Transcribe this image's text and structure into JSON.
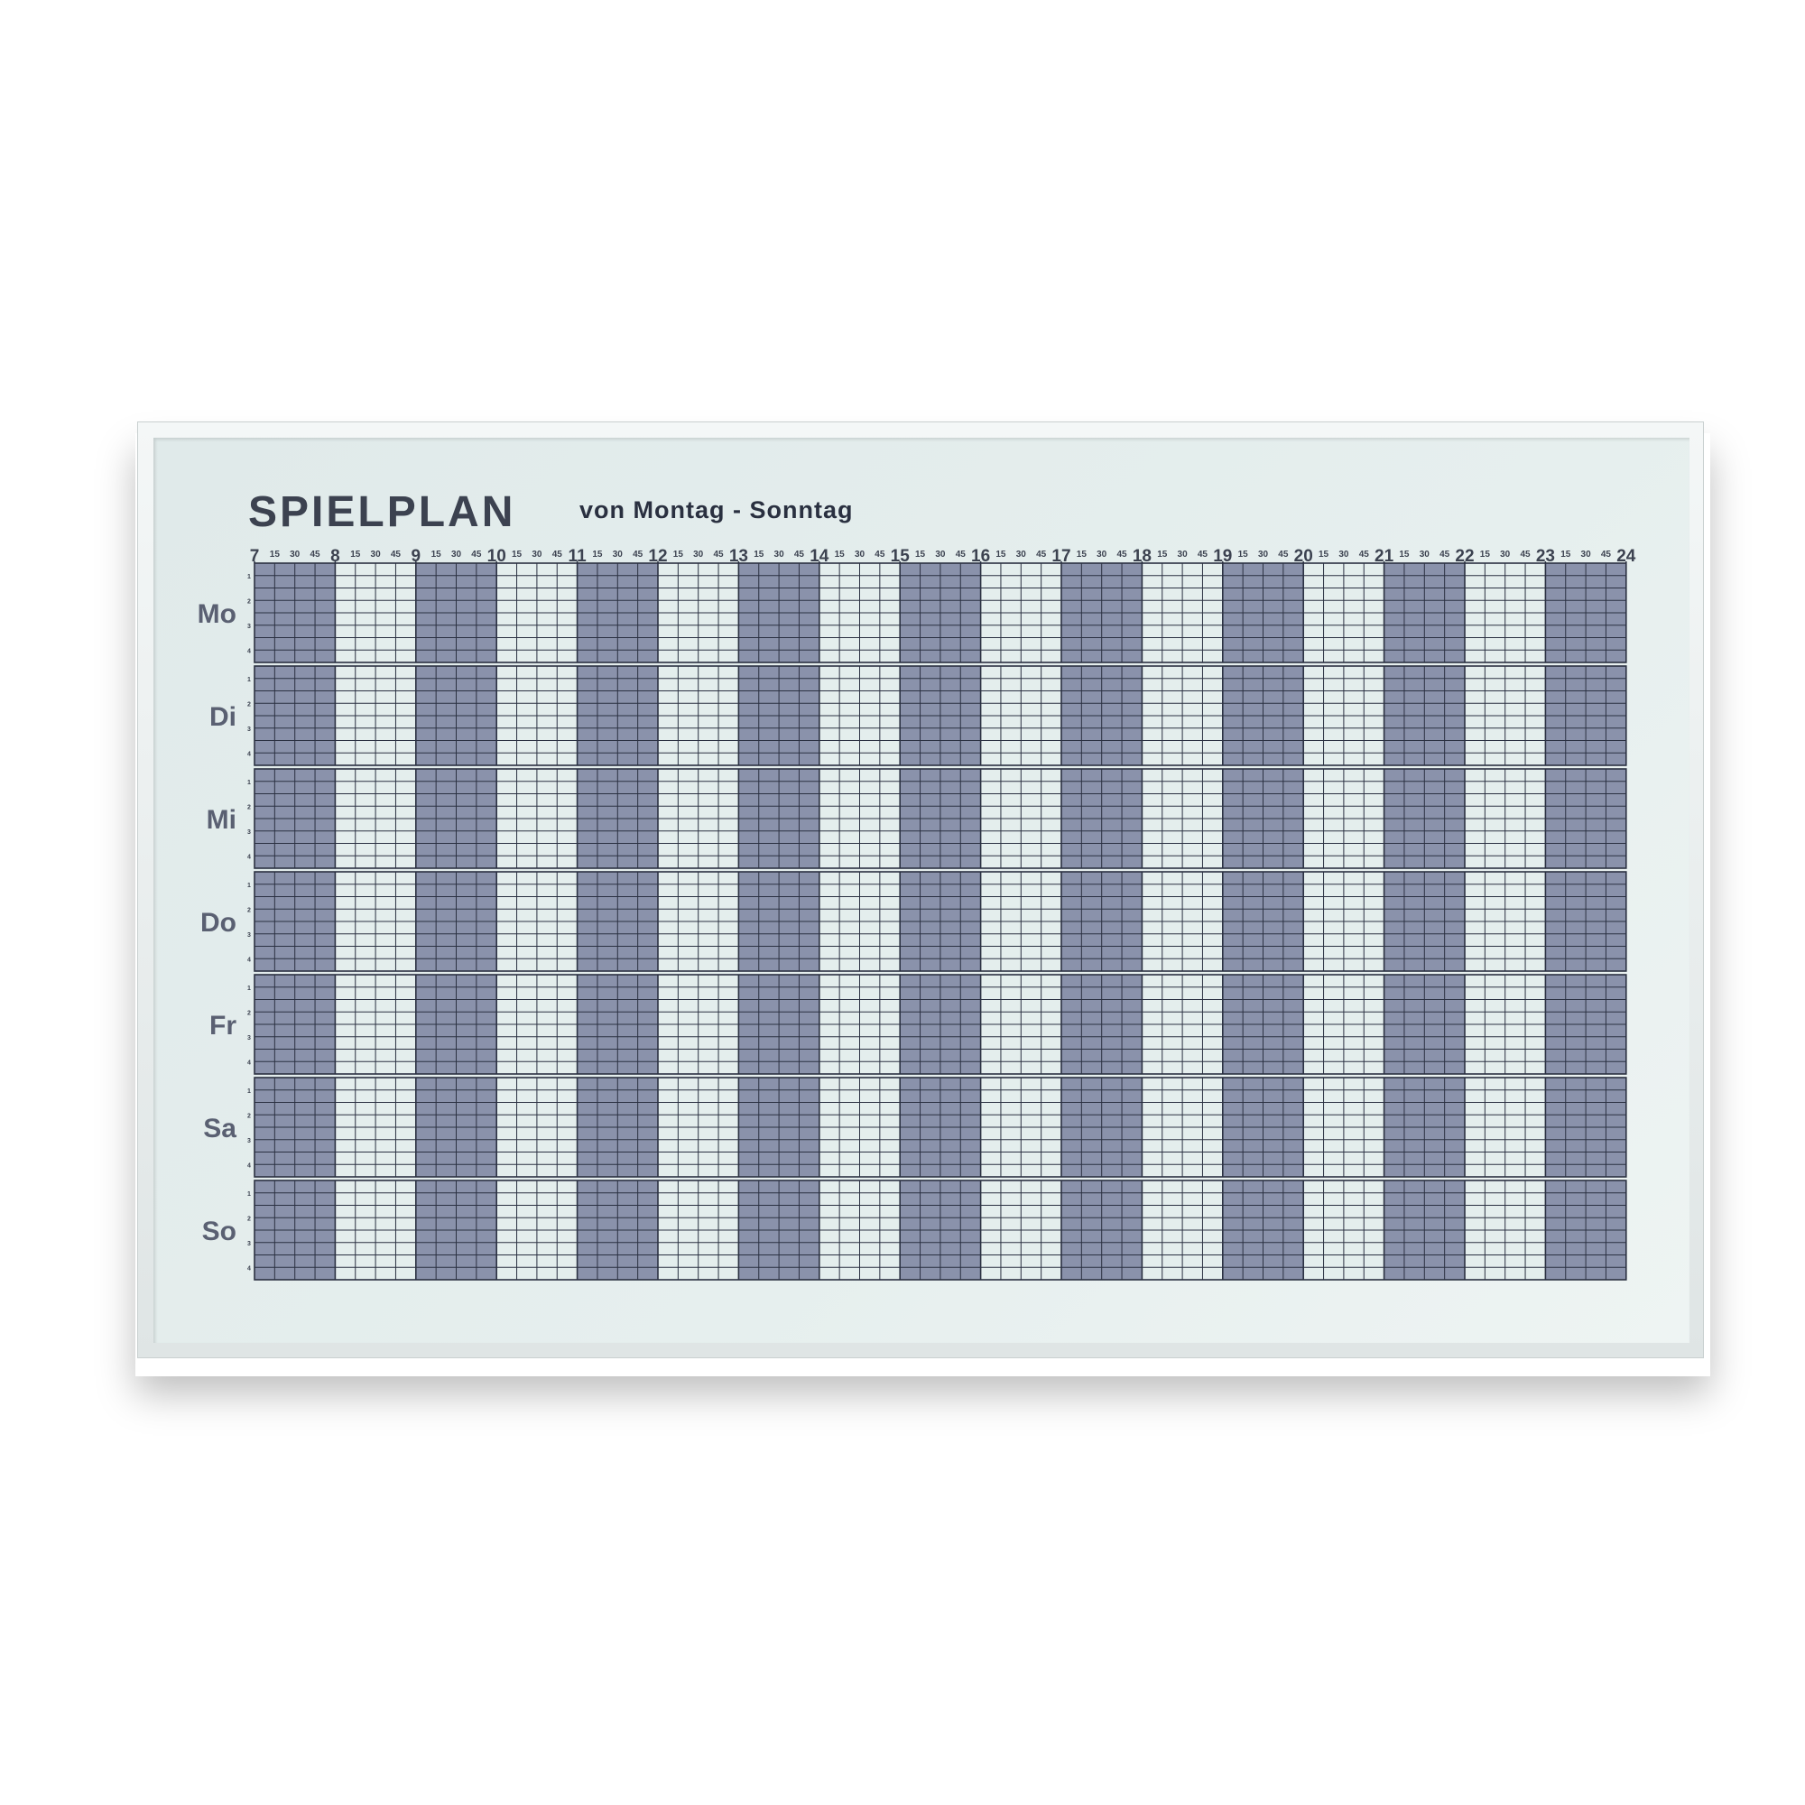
{
  "board": {
    "title": "SPIELPLAN",
    "subtitle": "von Montag - Sonntag"
  },
  "schedule": {
    "hours": [
      "7",
      "8",
      "9",
      "10",
      "11",
      "12",
      "13",
      "14",
      "15",
      "16",
      "17",
      "18",
      "19",
      "20",
      "21",
      "22",
      "23",
      "24"
    ],
    "quarter_labels": [
      "15",
      "30",
      "45"
    ],
    "days": [
      "Mo",
      "Di",
      "Mi",
      "Do",
      "Fr",
      "Sa",
      "So"
    ],
    "slot_labels": [
      "1",
      "2",
      "3",
      "4"
    ],
    "shaded_hours": [
      "7",
      "9",
      "11",
      "13",
      "15",
      "17",
      "19",
      "21",
      "23"
    ]
  },
  "colors": {
    "shaded": "#8a92ab",
    "light": "#e4eeed",
    "line": "#2b3142",
    "text": "#3c4250",
    "day_text": "#5a6072"
  }
}
